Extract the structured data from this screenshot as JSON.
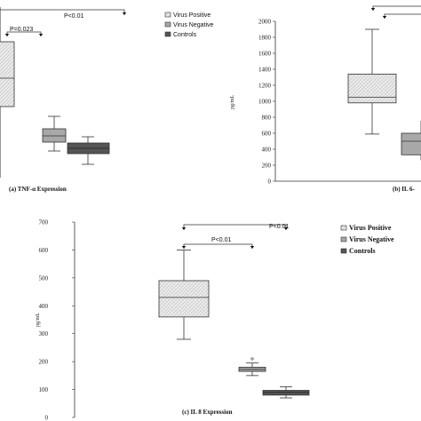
{
  "chart_data": [
    {
      "id": "tnf",
      "type": "box",
      "title": "(a) TNF-α Expression",
      "ylabel": "",
      "categories": [
        "Virus Positive",
        "Virus Negative",
        "Controls"
      ],
      "series": [
        {
          "name": "Virus Positive",
          "box": [
            null,
            null,
            null,
            null,
            null
          ]
        },
        {
          "name": "Virus Negative",
          "box": [
            null,
            null,
            null,
            null,
            null
          ]
        },
        {
          "name": "Controls",
          "box": [
            null,
            null,
            null,
            null,
            null
          ]
        }
      ],
      "annotations": [
        "P=0.023",
        "P<0.01"
      ],
      "legend": [
        "Virus Positive",
        "Virus Negative",
        "Controls"
      ],
      "legend_position": "top-right"
    },
    {
      "id": "il6",
      "type": "box",
      "title": "(b) IL 6-",
      "ylabel": "pg/mL",
      "ylim": [
        0,
        2000
      ],
      "yticks": [
        "0",
        "200",
        "400",
        "600",
        "800",
        "1000",
        "1200",
        "1400",
        "1600",
        "1800",
        "2000"
      ],
      "categories": [
        "Virus Positive",
        "Virus Negative"
      ],
      "series": [
        {
          "name": "Virus Positive",
          "box": [
            590,
            980,
            1050,
            1340,
            1900
          ]
        },
        {
          "name": "Virus Negative",
          "box": [
            null,
            330,
            500,
            600,
            null
          ]
        }
      ]
    },
    {
      "id": "il8",
      "type": "box",
      "title": "(c) IL 8 Expression",
      "ylabel": "pg/mL",
      "ylim": [
        0,
        700
      ],
      "yticks": [
        "0",
        "100",
        "200",
        "300",
        "400",
        "500",
        "600",
        "700"
      ],
      "categories": [
        "Virus Positive",
        "Virus Negative",
        "Controls"
      ],
      "series": [
        {
          "name": "Virus Positive",
          "box": [
            280,
            360,
            430,
            490,
            600
          ]
        },
        {
          "name": "Virus Negative",
          "box": [
            150,
            165,
            172,
            180,
            195
          ],
          "outliers": [
            210
          ]
        },
        {
          "name": "Controls",
          "box": [
            70,
            80,
            90,
            97,
            110
          ]
        }
      ],
      "annotations": [
        "P<0.01",
        "P<0.01"
      ],
      "legend": [
        "Virus Positive",
        "Virus Negative",
        "Controls"
      ],
      "legend_position": "top-right"
    }
  ],
  "colors": {
    "positive": "#eeeeee",
    "negative": "#a8a8a8",
    "controls": "#555555",
    "line": "#333333"
  }
}
